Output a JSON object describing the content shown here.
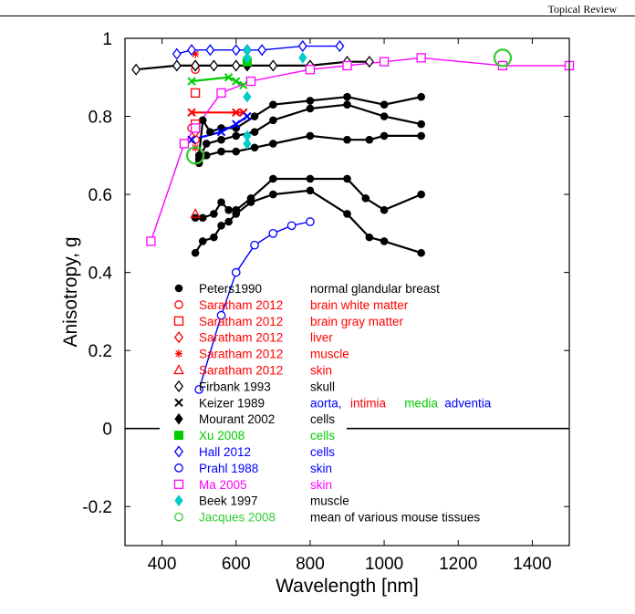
{
  "header": {
    "label": "Topical Review"
  },
  "chart_data": {
    "type": "scatter",
    "xlabel": "Wavelength [nm]",
    "ylabel": "Anisotropy, g",
    "xlim": [
      300,
      1500
    ],
    "ylim": [
      -0.3,
      1.0
    ],
    "xticks": [
      "400",
      "600",
      "800",
      "1000",
      "1200",
      "1400"
    ],
    "yticks": [
      "-0.2",
      "0",
      "0.2",
      "0.4",
      "0.6",
      "0.8",
      "1"
    ],
    "grid": false,
    "legend_position": "inside, lower-left",
    "zero_line": true,
    "series": [
      {
        "name": "Peters1990",
        "label": "normal glandular breast",
        "color": "#000000",
        "marker": "filled-circle",
        "lines": [
          [
            [
              500,
              0.7
            ],
            [
              510,
              0.79
            ],
            [
              530,
              0.76
            ],
            [
              560,
              0.77
            ],
            [
              600,
              0.77
            ],
            [
              650,
              0.8
            ],
            [
              700,
              0.83
            ],
            [
              800,
              0.84
            ],
            [
              900,
              0.85
            ],
            [
              1000,
              0.83
            ],
            [
              1100,
              0.85
            ]
          ],
          [
            [
              500,
              0.69
            ],
            [
              520,
              0.73
            ],
            [
              560,
              0.74
            ],
            [
              600,
              0.75
            ],
            [
              650,
              0.76
            ],
            [
              700,
              0.79
            ],
            [
              800,
              0.82
            ],
            [
              900,
              0.83
            ],
            [
              1000,
              0.8
            ],
            [
              1100,
              0.78
            ]
          ],
          [
            [
              500,
              0.68
            ],
            [
              520,
              0.7
            ],
            [
              560,
              0.71
            ],
            [
              600,
              0.71
            ],
            [
              650,
              0.72
            ],
            [
              700,
              0.73
            ],
            [
              800,
              0.75
            ],
            [
              900,
              0.74
            ],
            [
              960,
              0.74
            ],
            [
              1000,
              0.75
            ],
            [
              1100,
              0.75
            ]
          ],
          [
            [
              490,
              0.54
            ],
            [
              510,
              0.54
            ],
            [
              540,
              0.55
            ],
            [
              560,
              0.58
            ],
            [
              580,
              0.56
            ],
            [
              600,
              0.56
            ],
            [
              640,
              0.59
            ],
            [
              700,
              0.64
            ],
            [
              800,
              0.64
            ],
            [
              900,
              0.64
            ],
            [
              950,
              0.59
            ],
            [
              1000,
              0.56
            ],
            [
              1100,
              0.6
            ]
          ],
          [
            [
              490,
              0.45
            ],
            [
              510,
              0.48
            ],
            [
              540,
              0.49
            ],
            [
              560,
              0.52
            ],
            [
              580,
              0.53
            ],
            [
              600,
              0.55
            ],
            [
              640,
              0.58
            ],
            [
              700,
              0.6
            ],
            [
              800,
              0.61
            ],
            [
              900,
              0.55
            ],
            [
              960,
              0.49
            ],
            [
              1000,
              0.48
            ],
            [
              1100,
              0.45
            ]
          ]
        ]
      },
      {
        "name": "Saratham 2012",
        "label": "brain white matter",
        "color": "#ff0000",
        "marker": "open-circle",
        "points": [
          [
            480,
            0.77
          ],
          [
            490,
            0.92
          ],
          [
            490,
            0.74
          ]
        ]
      },
      {
        "name": "Saratham 2012",
        "label": "brain gray matter",
        "color": "#ff0000",
        "marker": "open-square",
        "points": [
          [
            490,
            0.86
          ],
          [
            490,
            0.78
          ]
        ]
      },
      {
        "name": "Saratham 2012",
        "label": "liver",
        "color": "#ff0000",
        "marker": "open-diamond",
        "points": [
          [
            490,
            0.93
          ],
          [
            490,
            0.76
          ]
        ]
      },
      {
        "name": "Saratham 2012",
        "label": "muscle",
        "color": "#ff0000",
        "marker": "asterisk",
        "points": [
          [
            490,
            0.96
          ],
          [
            490,
            0.72
          ]
        ]
      },
      {
        "name": "Saratham 2012",
        "label": "skin",
        "color": "#ff0000",
        "marker": "open-triangle",
        "points": [
          [
            490,
            0.55
          ]
        ]
      },
      {
        "name": "Firbank 1993",
        "label": "skull",
        "color": "#000000",
        "marker": "open-diamond",
        "lines": [
          [
            [
              330,
              0.92
            ],
            [
              440,
              0.93
            ],
            [
              490,
              0.93
            ],
            [
              540,
              0.93
            ],
            [
              600,
              0.93
            ],
            [
              630,
              0.93
            ],
            [
              700,
              0.93
            ],
            [
              800,
              0.93
            ],
            [
              900,
              0.94
            ],
            [
              960,
              0.94
            ]
          ]
        ]
      },
      {
        "name": "Keizer 1989",
        "label": "aorta,",
        "label_parts": [
          "intimia",
          "media",
          "adventia"
        ],
        "label_colors": [
          "#ff0000",
          "#00cc00",
          "#0000ff"
        ],
        "color": "#000000",
        "marker": "x",
        "lines": [
          [
            [
              480,
              0.81
            ],
            [
              600,
              0.81
            ],
            [
              620,
              0.81
            ]
          ],
          [
            [
              480,
              0.89
            ],
            [
              580,
              0.9
            ],
            [
              600,
              0.89
            ],
            [
              620,
              0.88
            ]
          ],
          [
            [
              480,
              0.74
            ],
            [
              560,
              0.76
            ],
            [
              600,
              0.78
            ],
            [
              630,
              0.8
            ]
          ]
        ]
      },
      {
        "name": "Mourant 2002",
        "label": "cells",
        "color": "#000000",
        "marker": "filled-diamond",
        "points": [
          [
            630,
            0.93
          ]
        ]
      },
      {
        "name": "Xu 2008",
        "label": "cells",
        "color": "#00cc00",
        "marker": "filled-square",
        "points": [
          [
            630,
            0.94
          ]
        ]
      },
      {
        "name": "Hall 2012",
        "label": "cells",
        "color": "#0000ff",
        "marker": "open-diamond",
        "lines": [
          [
            [
              440,
              0.96
            ],
            [
              480,
              0.97
            ],
            [
              530,
              0.97
            ],
            [
              600,
              0.97
            ],
            [
              630,
              0.97
            ],
            [
              670,
              0.97
            ],
            [
              780,
              0.98
            ],
            [
              880,
              0.98
            ]
          ]
        ]
      },
      {
        "name": "Prahl 1988",
        "label": "skin",
        "color": "#0000ff",
        "marker": "open-circle",
        "lines": [
          [
            [
              500,
              0.1
            ],
            [
              560,
              0.29
            ],
            [
              600,
              0.4
            ],
            [
              650,
              0.47
            ],
            [
              700,
              0.5
            ],
            [
              750,
              0.52
            ],
            [
              800,
              0.53
            ]
          ]
        ]
      },
      {
        "name": "Ma 2005",
        "label": "skin",
        "color": "#ff00ff",
        "marker": "open-square",
        "lines": [
          [
            [
              370,
              0.48
            ],
            [
              460,
              0.73
            ],
            [
              490,
              0.77
            ],
            [
              560,
              0.86
            ],
            [
              640,
              0.89
            ],
            [
              800,
              0.92
            ],
            [
              900,
              0.93
            ],
            [
              1000,
              0.94
            ],
            [
              1100,
              0.95
            ],
            [
              1320,
              0.93
            ],
            [
              1500,
              0.93
            ]
          ]
        ]
      },
      {
        "name": "Beek 1997",
        "label": "muscle",
        "color": "#00cccc",
        "marker": "filled-diamond",
        "points": [
          [
            630,
            0.97
          ],
          [
            630,
            0.95
          ],
          [
            630,
            0.85
          ],
          [
            630,
            0.75
          ],
          [
            630,
            0.73
          ],
          [
            780,
            0.95
          ]
        ]
      },
      {
        "name": "Jacques 2008",
        "label": "mean of various mouse tissues",
        "color": "#33cc33",
        "marker": "big-open-circle",
        "points": [
          [
            490,
            0.7
          ],
          [
            1320,
            0.95
          ]
        ]
      }
    ]
  }
}
